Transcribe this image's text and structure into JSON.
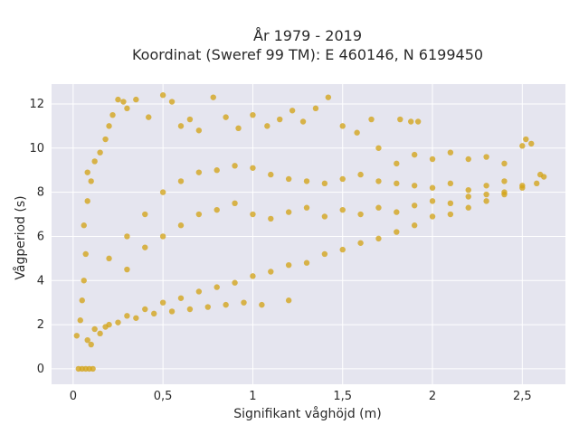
{
  "chart_data": {
    "type": "scatter",
    "title_line1": "År 1979 - 2019",
    "title_line2": "Koordinat (Sweref 99 TM): E 460146, N 6199450",
    "xlabel": "Signifikant våghöjd (m)",
    "ylabel": "Vågperiod (s)",
    "xlim": [
      -0.12,
      2.74
    ],
    "ylim": [
      -0.7,
      12.9
    ],
    "x_ticks": [
      0,
      0.5,
      1,
      1.5,
      2,
      2.5
    ],
    "x_tick_labels": [
      "0",
      "0,5",
      "1",
      "1,5",
      "2",
      "2,5"
    ],
    "y_ticks": [
      0,
      2,
      4,
      6,
      8,
      10,
      12
    ],
    "y_tick_labels": [
      "0",
      "2",
      "4",
      "6",
      "8",
      "10",
      "12"
    ],
    "grid": true,
    "marker_color": "#D4A418",
    "background_color": "#E5E5EF",
    "series": [
      {
        "points": [
          [
            0.03,
            0.0
          ],
          [
            0.05,
            0.0
          ],
          [
            0.07,
            0.0
          ],
          [
            0.09,
            0.0
          ],
          [
            0.11,
            0.0
          ],
          [
            0.02,
            1.5
          ],
          [
            0.04,
            2.2
          ],
          [
            0.05,
            3.1
          ],
          [
            0.06,
            4.0
          ],
          [
            0.07,
            5.2
          ],
          [
            0.06,
            6.5
          ],
          [
            0.08,
            7.6
          ],
          [
            0.1,
            8.5
          ],
          [
            0.12,
            9.4
          ],
          [
            0.08,
            8.9
          ],
          [
            0.15,
            9.8
          ],
          [
            0.18,
            10.4
          ],
          [
            0.2,
            11.0
          ],
          [
            0.22,
            11.5
          ],
          [
            0.25,
            12.2
          ],
          [
            0.28,
            12.1
          ],
          [
            0.3,
            11.8
          ],
          [
            0.35,
            12.2
          ],
          [
            0.42,
            11.4
          ],
          [
            0.5,
            12.4
          ],
          [
            0.55,
            12.1
          ],
          [
            0.6,
            11.0
          ],
          [
            0.65,
            11.3
          ],
          [
            0.7,
            10.8
          ],
          [
            0.78,
            12.3
          ],
          [
            0.85,
            11.4
          ],
          [
            0.92,
            10.9
          ],
          [
            1.0,
            11.5
          ],
          [
            1.08,
            11.0
          ],
          [
            1.15,
            11.3
          ],
          [
            1.22,
            11.7
          ],
          [
            1.28,
            11.2
          ],
          [
            1.35,
            11.8
          ],
          [
            1.42,
            12.3
          ],
          [
            1.5,
            11.0
          ],
          [
            1.58,
            10.7
          ],
          [
            1.66,
            11.3
          ],
          [
            1.82,
            11.3
          ],
          [
            1.88,
            11.2
          ],
          [
            1.92,
            11.2
          ],
          [
            1.7,
            10.0
          ],
          [
            1.8,
            9.3
          ],
          [
            1.9,
            9.7
          ],
          [
            2.0,
            9.5
          ],
          [
            2.1,
            9.8
          ],
          [
            2.2,
            9.5
          ],
          [
            2.3,
            9.6
          ],
          [
            2.4,
            9.3
          ],
          [
            2.5,
            10.1
          ],
          [
            2.52,
            10.4
          ],
          [
            2.55,
            10.2
          ],
          [
            2.6,
            8.8
          ],
          [
            2.62,
            8.7
          ],
          [
            2.58,
            8.4
          ],
          [
            2.5,
            8.2
          ],
          [
            2.4,
            7.9
          ],
          [
            2.3,
            7.6
          ],
          [
            2.2,
            7.3
          ],
          [
            2.1,
            7.0
          ],
          [
            2.0,
            6.9
          ],
          [
            1.9,
            6.5
          ],
          [
            1.8,
            6.2
          ],
          [
            1.7,
            5.9
          ],
          [
            1.6,
            5.7
          ],
          [
            1.5,
            5.4
          ],
          [
            1.4,
            5.2
          ],
          [
            1.3,
            4.8
          ],
          [
            1.2,
            4.7
          ],
          [
            1.1,
            4.4
          ],
          [
            1.0,
            4.2
          ],
          [
            0.9,
            3.9
          ],
          [
            0.8,
            3.7
          ],
          [
            0.7,
            3.5
          ],
          [
            0.6,
            3.2
          ],
          [
            0.5,
            3.0
          ],
          [
            0.4,
            2.7
          ],
          [
            0.3,
            2.4
          ],
          [
            0.2,
            2.0
          ],
          [
            0.15,
            1.6
          ],
          [
            0.1,
            1.1
          ],
          [
            0.08,
            1.3
          ],
          [
            0.12,
            1.8
          ],
          [
            0.18,
            1.9
          ],
          [
            0.25,
            2.1
          ],
          [
            0.35,
            2.3
          ],
          [
            0.45,
            2.5
          ],
          [
            0.55,
            2.6
          ],
          [
            0.65,
            2.7
          ],
          [
            0.75,
            2.8
          ],
          [
            0.85,
            2.9
          ],
          [
            0.95,
            3.0
          ],
          [
            1.05,
            2.9
          ],
          [
            1.2,
            3.1
          ],
          [
            0.3,
            6.0
          ],
          [
            0.4,
            7.0
          ],
          [
            0.5,
            8.0
          ],
          [
            0.6,
            8.5
          ],
          [
            0.7,
            8.9
          ],
          [
            0.8,
            9.0
          ],
          [
            0.9,
            9.2
          ],
          [
            1.0,
            9.1
          ],
          [
            1.1,
            8.8
          ],
          [
            1.2,
            8.6
          ],
          [
            1.3,
            8.5
          ],
          [
            1.4,
            8.4
          ],
          [
            1.5,
            8.6
          ],
          [
            1.6,
            8.8
          ],
          [
            1.7,
            8.5
          ],
          [
            1.8,
            8.4
          ],
          [
            1.9,
            8.3
          ],
          [
            2.0,
            8.2
          ],
          [
            2.1,
            8.4
          ],
          [
            2.2,
            8.1
          ],
          [
            2.3,
            8.3
          ],
          [
            2.4,
            8.5
          ],
          [
            0.2,
            5.0
          ],
          [
            0.3,
            4.5
          ],
          [
            0.4,
            5.5
          ],
          [
            0.5,
            6.0
          ],
          [
            0.6,
            6.5
          ],
          [
            0.7,
            7.0
          ],
          [
            0.8,
            7.2
          ],
          [
            0.9,
            7.5
          ],
          [
            1.0,
            7.0
          ],
          [
            1.1,
            6.8
          ],
          [
            1.2,
            7.1
          ],
          [
            1.3,
            7.3
          ],
          [
            1.4,
            6.9
          ],
          [
            1.5,
            7.2
          ],
          [
            1.6,
            7.0
          ],
          [
            1.7,
            7.3
          ],
          [
            1.8,
            7.1
          ],
          [
            1.9,
            7.4
          ],
          [
            2.0,
            7.6
          ],
          [
            2.1,
            7.5
          ],
          [
            2.2,
            7.8
          ],
          [
            2.3,
            7.9
          ],
          [
            2.4,
            8.0
          ],
          [
            2.5,
            8.3
          ]
        ]
      }
    ]
  }
}
